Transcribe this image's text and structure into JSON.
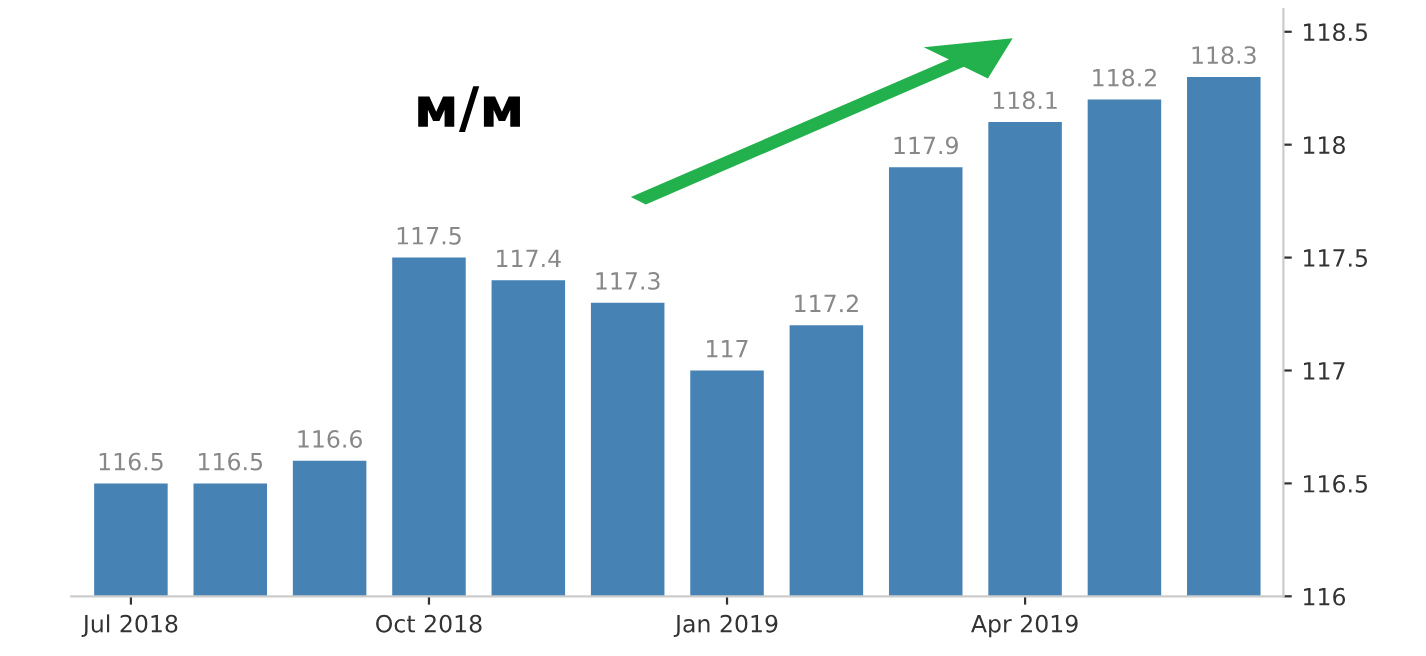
{
  "chart_data": {
    "type": "bar",
    "categories": [
      "Jul 2018",
      null,
      null,
      "Oct 2018",
      null,
      null,
      "Jan 2019",
      null,
      null,
      "Apr 2019",
      null,
      null
    ],
    "values": [
      116.5,
      116.5,
      116.6,
      117.5,
      117.4,
      117.3,
      117,
      117.2,
      117.9,
      118.1,
      118.2,
      118.3
    ],
    "color": "#4682b4",
    "ylim": [
      116,
      118.6
    ],
    "yticks": [
      116,
      116.5,
      117,
      117.5,
      118,
      118.5
    ],
    "data_labels": true,
    "grid": false,
    "annotations": [
      "м/м"
    ]
  }
}
